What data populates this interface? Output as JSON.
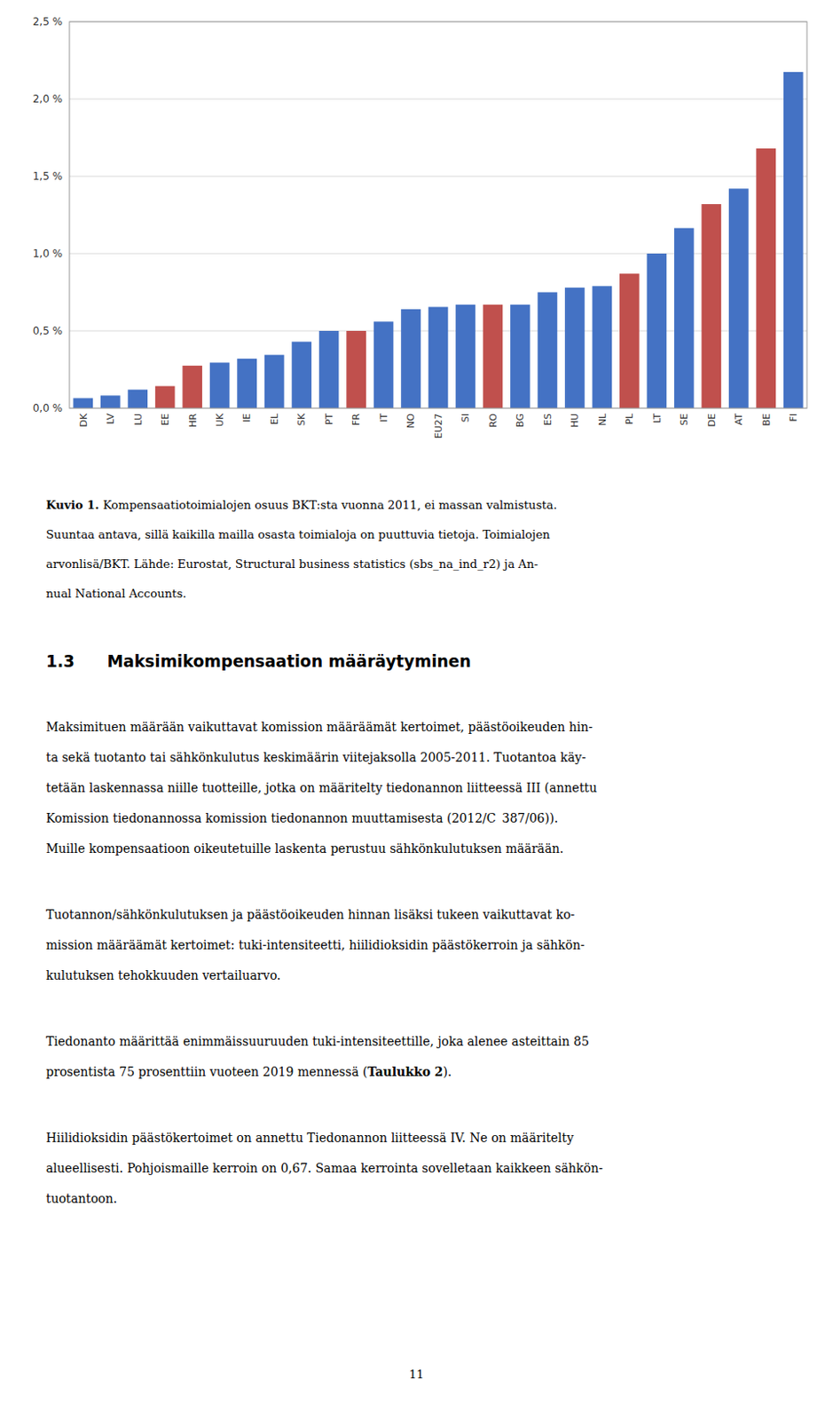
{
  "chart_data": {
    "type": "bar",
    "categories": [
      "DK",
      "LV",
      "LU",
      "EE",
      "HR",
      "UK",
      "IE",
      "EL",
      "SK",
      "PT",
      "FR",
      "IT",
      "NO",
      "EU27",
      "SI",
      "RO",
      "BG",
      "ES",
      "HU",
      "NL",
      "PL",
      "LT",
      "SE",
      "DE",
      "AT",
      "BE",
      "FI"
    ],
    "values": [
      0.00065,
      0.00082,
      0.0012,
      0.00143,
      0.00275,
      0.00295,
      0.0032,
      0.00345,
      0.0043,
      0.005,
      0.005,
      0.0056,
      0.0064,
      0.00655,
      0.0067,
      0.0067,
      0.0067,
      0.0075,
      0.0078,
      0.0079,
      0.0087,
      0.01,
      0.01165,
      0.0132,
      0.0142,
      0.0168,
      0.02175
    ],
    "colors": [
      "#4472c4",
      "#4472c4",
      "#4472c4",
      "#c0504d",
      "#c0504d",
      "#4472c4",
      "#4472c4",
      "#4472c4",
      "#4472c4",
      "#4472c4",
      "#c0504d",
      "#4472c4",
      "#4472c4",
      "#4472c4",
      "#4472c4",
      "#c0504d",
      "#4472c4",
      "#4472c4",
      "#4472c4",
      "#4472c4",
      "#c0504d",
      "#4472c4",
      "#4472c4",
      "#c0504d",
      "#4472c4",
      "#c0504d",
      "#4472c4"
    ],
    "ylim": [
      0.0,
      0.025
    ],
    "yticks": [
      {
        "value": 0.0,
        "label": "0,0 %"
      },
      {
        "value": 0.005,
        "label": "0,5 %"
      },
      {
        "value": 0.01,
        "label": "1,0 %"
      },
      {
        "value": 0.015,
        "label": "1,5 %"
      },
      {
        "value": 0.02,
        "label": "2,0 %"
      },
      {
        "value": 0.025,
        "label": "2,5 %"
      }
    ],
    "grid": true
  },
  "caption": {
    "label": "Kuvio 1.",
    "lines": [
      "Kompensaatiotoimialojen osuus BKT:sta vuonna 2011, ei massan valmistusta.",
      "Suuntaa antava, sillä kaikilla mailla osasta toimialoja on puuttuvia tietoja. Toimialojen",
      "arvonlisä/BKT. Lähde: Eurostat, Structural business statistics (sbs_na_ind_r2) ja An-",
      "nual National Accounts."
    ]
  },
  "heading": "1.3  Maksimikompensaation määräytyminen",
  "paragraphs": [
    [
      "Maksimituen määrään vaikuttavat komission määräämät kertoimet, päästöoikeuden hin-",
      "ta sekä tuotanto tai sähkönkulutus keskimäärin viitejaksolla 2005-2011. Tuotantoa käy-",
      "tetään laskennassa niille tuotteille, jotka on määritelty tiedonannon liitteessä III (annettu",
      "Komission tiedonannossa komission tiedonannon muuttamisesta (2012/C 387/06)).",
      "Muille kompensaatioon oikeutetuille laskenta perustuu sähkönkulutuksen määrään."
    ],
    [
      "Tuotannon/sähkönkulutuksen ja päästöoikeuden hinnan lisäksi tukeen vaikuttavat ko-",
      "mission määräämät kertoimet: tuki-intensiteetti, hiilidioksidin päästökerroin ja sähkön-",
      "kulutuksen tehokkuuden vertailuarvo."
    ],
    [
      "Tiedonanto määrittää enimmäissuuruuden tuki-intensiteettille, joka alenee asteittain 85",
      [
        {
          "text": "prosentista 75 prosenttiin vuoteen 2019 mennessä (",
          "bold": false
        },
        {
          "text": "Taulukko 2",
          "bold": true
        },
        {
          "text": ").",
          "bold": false
        }
      ]
    ],
    [
      "Hiilidioksidin päästökertoimet on annettu Tiedonannon liitteessä IV. Ne on määritelty",
      "alueellisesti. Pohjoismaille kerroin on 0,67. Samaa kerrointa sovelletaan kaikkeen sähkön-",
      "tuotantoon."
    ]
  ],
  "page_number": "11"
}
